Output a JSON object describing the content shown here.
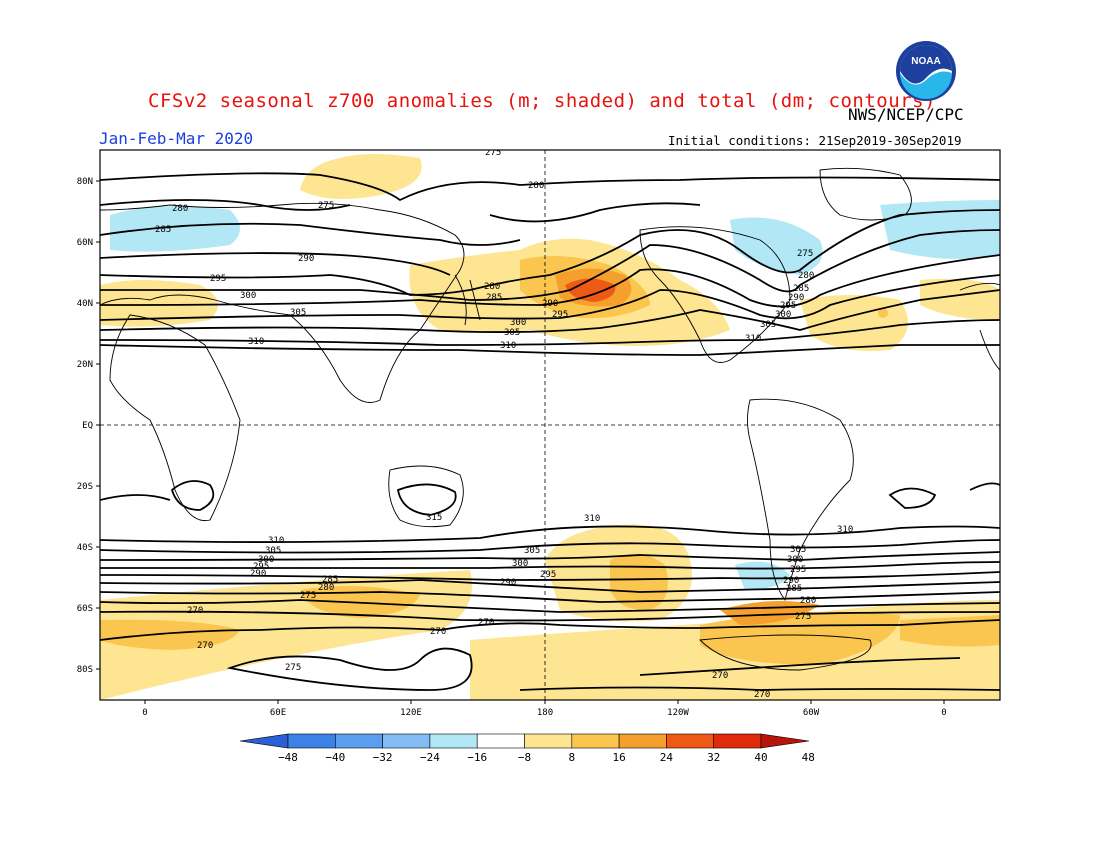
{
  "header": {
    "title": "CFSv2 seasonal z700 anomalies (m; shaded) and total (dm; contours)",
    "org": "NWS/NCEP/CPC",
    "period": "Jan-Feb-Mar 2020",
    "initial_conditions": "Initial conditions: 21Sep2019-30Sep2019",
    "logo_text": "NOAA"
  },
  "axes": {
    "lat_labels": [
      "80N",
      "60N",
      "40N",
      "20N",
      "EQ",
      "20S",
      "40S",
      "60S",
      "80S"
    ],
    "lon_labels": [
      "0",
      "60E",
      "120E",
      "180",
      "120W",
      "60W",
      "0"
    ]
  },
  "contours": {
    "labels": [
      "275",
      "280",
      "285",
      "290",
      "295",
      "300",
      "305",
      "310",
      "280",
      "275",
      "280",
      "285",
      "290",
      "300",
      "305",
      "295",
      "310",
      "275",
      "280",
      "285",
      "290",
      "295",
      "300",
      "305",
      "310",
      "315",
      "310",
      "305",
      "300",
      "295",
      "290",
      "285",
      "280",
      "275",
      "270",
      "270",
      "275",
      "270",
      "270",
      "310",
      "305",
      "300",
      "295",
      "290",
      "285",
      "280",
      "275",
      "270",
      "270"
    ]
  },
  "colorbar": {
    "ticks": [
      "-48",
      "-40",
      "-32",
      "-24",
      "-16",
      "-8",
      "8",
      "16",
      "24",
      "32",
      "40",
      "48"
    ],
    "colors": [
      "#2b5fd6",
      "#3c82e6",
      "#5a9ef0",
      "#84bdf5",
      "#b2e7f5",
      "#ffffff",
      "#fde591",
      "#fbc64f",
      "#f5a02c",
      "#ee5a16",
      "#e02a0a",
      "#b8150a"
    ]
  },
  "colors": {
    "title": "#e8120c",
    "period": "#1a3fe0",
    "pos_light": "#fde591",
    "pos_mid": "#fbc64f",
    "pos_strong": "#f5a02c",
    "pos_max": "#ee5a16",
    "neg_light": "#b2e7f5"
  }
}
